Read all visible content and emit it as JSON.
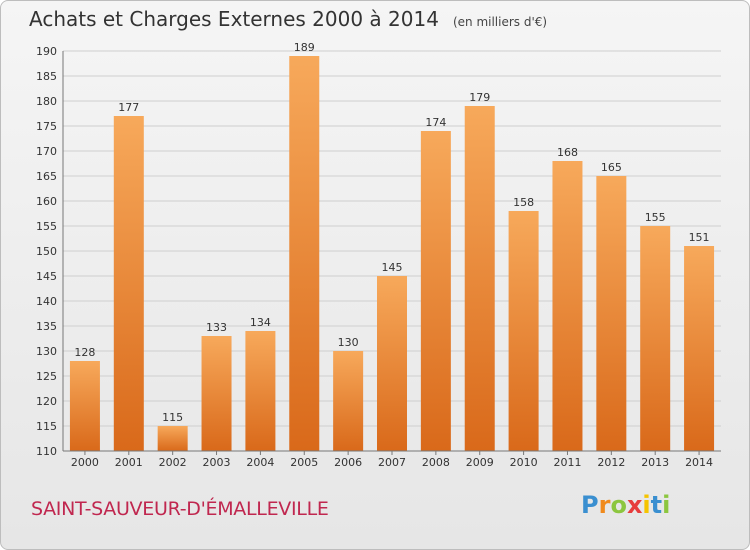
{
  "header": {
    "title": "Achats et Charges Externes 2000 à 2014",
    "unit": "(en milliers d'€)"
  },
  "footer": {
    "commune": "SAINT-SAUVEUR-D'ÉMALLEVILLE",
    "logo_letters": [
      "P",
      "r",
      "o",
      "x",
      "i",
      "t",
      "i"
    ]
  },
  "colors": {
    "bar_top": "#f7a95b",
    "bar_bottom": "#d9691a",
    "grid": "#cfcfcf",
    "axis": "#777777",
    "commune": "#c0274f"
  },
  "chart_data": {
    "type": "bar",
    "categories": [
      "2000",
      "2001",
      "2002",
      "2003",
      "2004",
      "2005",
      "2006",
      "2007",
      "2008",
      "2009",
      "2010",
      "2011",
      "2012",
      "2013",
      "2014"
    ],
    "values": [
      128,
      177,
      115,
      133,
      134,
      189,
      130,
      145,
      174,
      179,
      158,
      168,
      165,
      155,
      151
    ],
    "ylim": [
      110,
      190
    ],
    "yticks": [
      110,
      115,
      120,
      125,
      130,
      135,
      140,
      145,
      150,
      155,
      160,
      165,
      170,
      175,
      180,
      185,
      190
    ],
    "grid": true
  }
}
